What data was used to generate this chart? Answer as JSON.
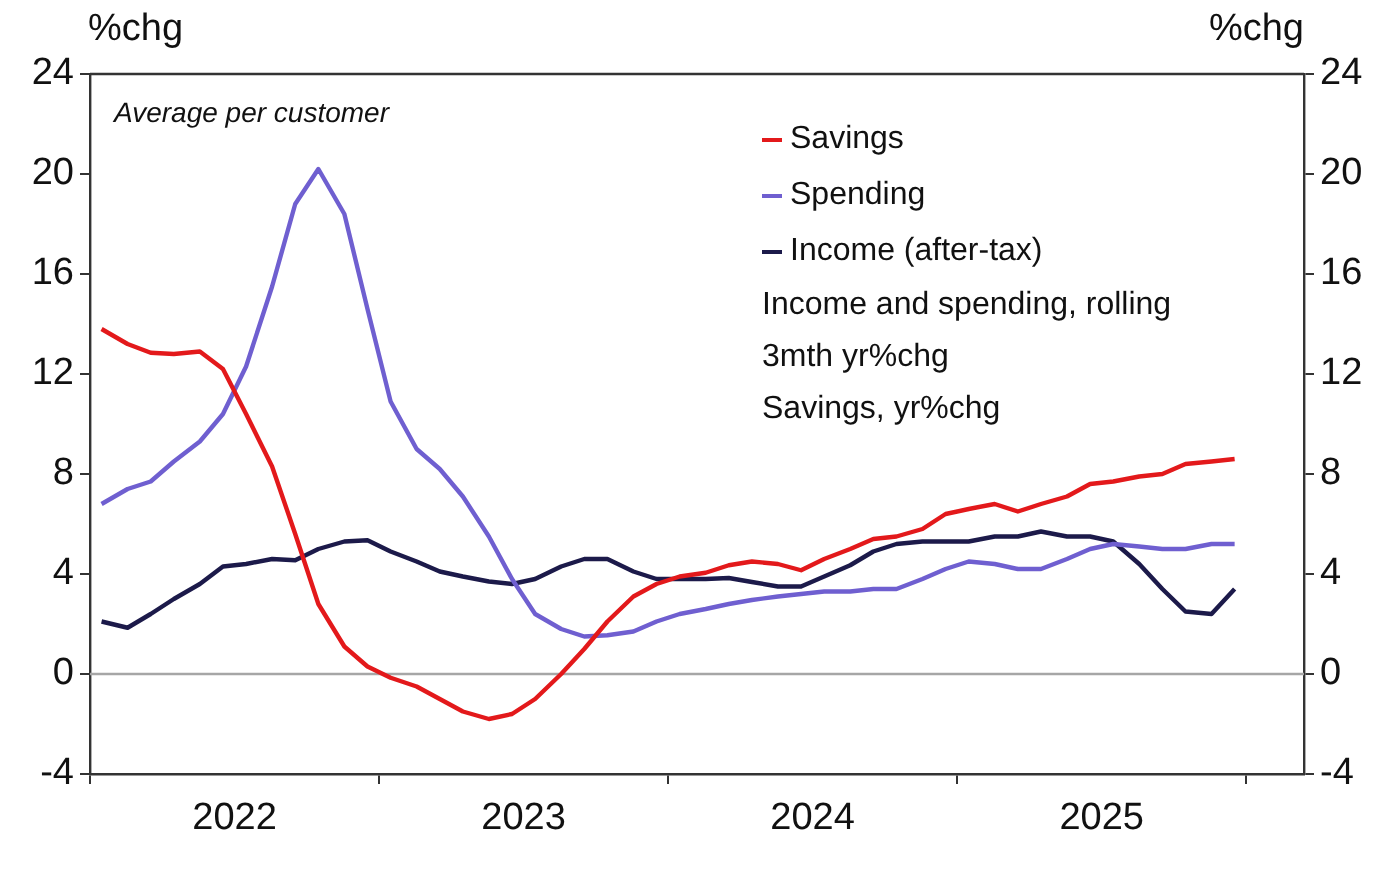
{
  "chart_data": {
    "type": "line",
    "ylabel": "%chg",
    "y2label": "%chg",
    "x": [
      2022.04,
      2022.13,
      2022.21,
      2022.29,
      2022.38,
      2022.46,
      2022.54,
      2022.63,
      2022.71,
      2022.79,
      2022.88,
      2022.96,
      2023.04,
      2023.13,
      2023.21,
      2023.29,
      2023.38,
      2023.46,
      2023.54,
      2023.63,
      2023.71,
      2023.79,
      2023.88,
      2023.96,
      2024.04,
      2024.13,
      2024.21,
      2024.29,
      2024.38,
      2024.46,
      2024.54,
      2024.63,
      2024.71,
      2024.79,
      2024.88,
      2024.96,
      2025.04,
      2025.13,
      2025.21,
      2025.29,
      2025.38,
      2025.46,
      2025.54,
      2025.63,
      2025.71,
      2025.79,
      2025.88,
      2025.96
    ],
    "series": [
      {
        "name": "Savings",
        "color": "#e3191b",
        "values": [
          13.8,
          13.2,
          12.85,
          12.8,
          12.9,
          12.2,
          10.4,
          8.3,
          5.6,
          2.8,
          1.1,
          0.3,
          -0.15,
          -0.5,
          -1.0,
          -1.5,
          -1.8,
          -1.6,
          -1.0,
          0.0,
          1.0,
          2.1,
          3.1,
          3.6,
          3.9,
          4.05,
          4.35,
          4.5,
          4.4,
          4.15,
          4.6,
          5.0,
          5.4,
          5.5,
          5.8,
          6.4,
          6.6,
          6.8,
          6.5,
          6.8,
          7.1,
          7.6,
          7.7,
          7.9,
          8.0,
          8.4,
          8.5,
          8.6
        ]
      },
      {
        "name": "Spending",
        "color": "#6f5fd0",
        "values": [
          6.8,
          7.4,
          7.7,
          8.5,
          9.3,
          10.4,
          12.3,
          15.5,
          18.8,
          20.2,
          18.4,
          14.6,
          10.9,
          9.0,
          8.2,
          7.1,
          5.5,
          3.8,
          2.4,
          1.8,
          1.5,
          1.55,
          1.7,
          2.1,
          2.4,
          2.6,
          2.8,
          2.96,
          3.1,
          3.2,
          3.3,
          3.3,
          3.4,
          3.4,
          3.8,
          4.2,
          4.5,
          4.4,
          4.2,
          4.2,
          4.6,
          5.0,
          5.2,
          5.1,
          5.0,
          5.0,
          5.2,
          5.2
        ]
      },
      {
        "name": "Income (after-tax)",
        "color": "#1c1a4a",
        "values": [
          2.1,
          1.85,
          2.4,
          3.0,
          3.6,
          4.3,
          4.4,
          4.6,
          4.55,
          5.0,
          5.3,
          5.35,
          4.9,
          4.5,
          4.1,
          3.9,
          3.7,
          3.6,
          3.8,
          4.3,
          4.6,
          4.6,
          4.1,
          3.8,
          3.8,
          3.8,
          3.84,
          3.68,
          3.5,
          3.5,
          3.9,
          4.35,
          4.9,
          5.2,
          5.3,
          5.3,
          5.3,
          5.5,
          5.5,
          5.7,
          5.5,
          5.5,
          5.3,
          4.4,
          3.4,
          2.5,
          2.4,
          3.4
        ]
      }
    ],
    "xlim": [
      2022,
      2026.2
    ],
    "xticks": [
      {
        "value": 2022,
        "label": null
      },
      {
        "value": 2022.5,
        "label": "2022"
      },
      {
        "value": 2023,
        "label": null
      },
      {
        "value": 2023.5,
        "label": "2023"
      },
      {
        "value": 2024,
        "label": null
      },
      {
        "value": 2024.5,
        "label": "2024"
      },
      {
        "value": 2025,
        "label": null
      },
      {
        "value": 2025.5,
        "label": "2025"
      },
      {
        "value": 2026,
        "label": null
      }
    ],
    "ylim": [
      -4,
      24
    ],
    "yticks": [
      -4,
      0,
      4,
      8,
      12,
      16,
      20,
      24
    ],
    "y2lim": [
      -4,
      24
    ],
    "y2ticks": [
      -4,
      0,
      4,
      8,
      12,
      16,
      20,
      24
    ],
    "ref_lines": [
      {
        "axis": "y",
        "value": 0,
        "color": "#a6a6a6"
      }
    ],
    "annotations": [
      "Average per customer",
      "Income and spending, rolling 3mth yr%chg",
      "Savings, yr%chg"
    ],
    "legend": "top right",
    "grid": false,
    "marker": "none",
    "line_style": "solid"
  }
}
